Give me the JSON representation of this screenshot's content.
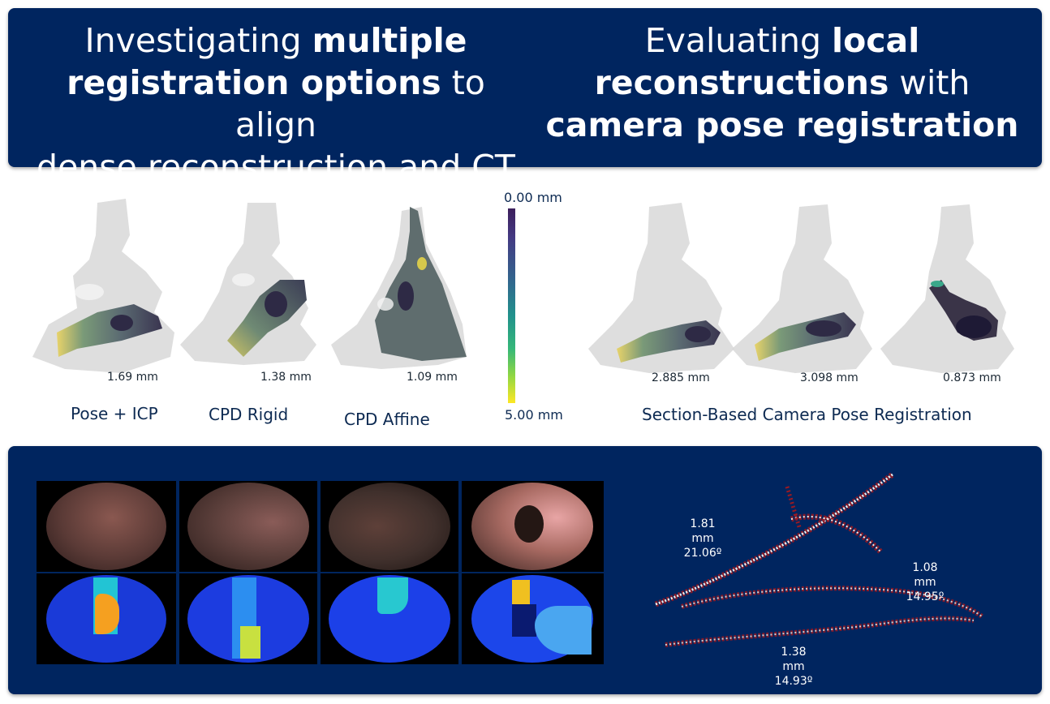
{
  "header": {
    "left": {
      "pre": "Investigating ",
      "bold1": "multiple",
      "bold2": "registration options",
      "post": " to align",
      "line3": "dense reconstruction and CT"
    },
    "right": {
      "pre": "Evaluating ",
      "bold1": "local",
      "bold2": "reconstructions",
      "post": " with",
      "bold3": "camera pose registration"
    }
  },
  "registration": {
    "methods": [
      "Pose + ICP",
      "CPD Rigid",
      "CPD Affine"
    ],
    "errors": [
      "1.69 mm",
      "1.38 mm",
      "1.09 mm"
    ]
  },
  "colorbar": {
    "top_label": "0.00 mm",
    "bottom_label": "5.00 mm"
  },
  "section_based": {
    "title": "Section-Based Camera Pose Registration",
    "errors": [
      "2.885 mm",
      "3.098 mm",
      "0.873 mm"
    ]
  },
  "trajectory": {
    "annotations": [
      {
        "distance": "1.81 mm",
        "angle": "21.06º"
      },
      {
        "distance": "1.08 mm",
        "angle": "14.95º"
      },
      {
        "distance": "1.38 mm",
        "angle": "14.93º"
      }
    ]
  }
}
